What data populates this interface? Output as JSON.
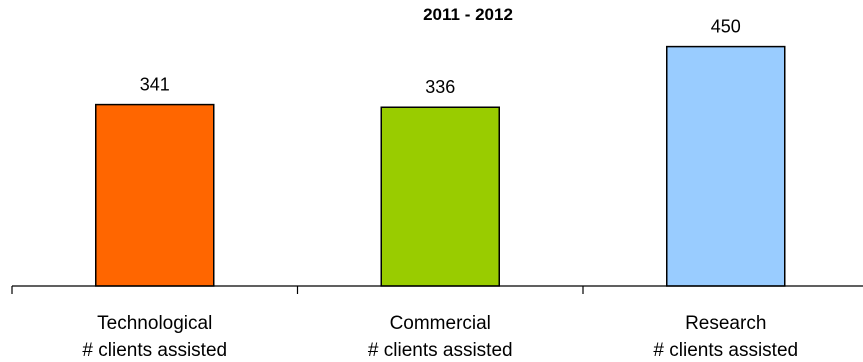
{
  "chart_data": {
    "type": "bar",
    "title": "2011 - 2012",
    "categories": [
      [
        "Technological",
        "# clients assisted"
      ],
      [
        "Commercial",
        "# clients assisted"
      ],
      [
        "Research",
        "# clients assisted"
      ]
    ],
    "values": [
      341,
      336,
      450
    ],
    "value_labels": [
      "341",
      "336",
      "450"
    ],
    "colors": [
      "#ff6600",
      "#99cc00",
      "#99ccff"
    ],
    "bar_edge_color": "#000000",
    "xlabel": "",
    "ylabel": "",
    "ylim": [
      0,
      500
    ],
    "grid": false,
    "legend": "none"
  }
}
